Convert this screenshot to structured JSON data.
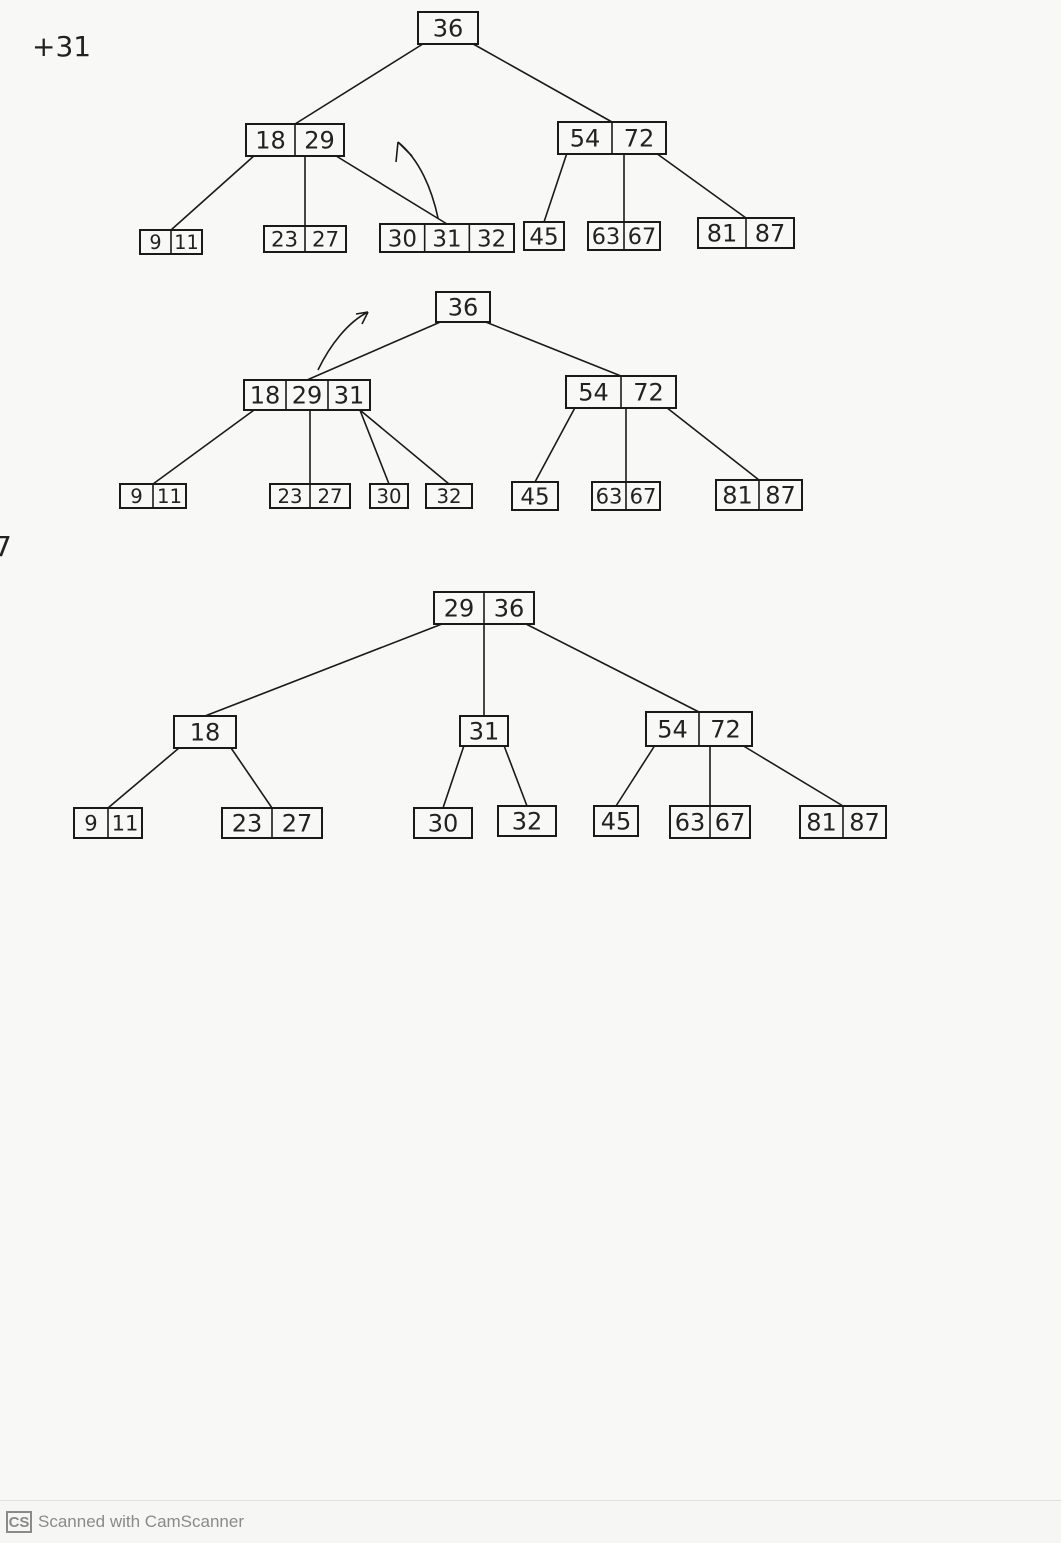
{
  "note": "+31",
  "stray_mark": "7",
  "trees": [
    {
      "nodes": [
        {
          "id": "t1-root",
          "keys": [
            "36"
          ]
        },
        {
          "id": "t1-l",
          "keys": [
            "18",
            "29"
          ]
        },
        {
          "id": "t1-r",
          "keys": [
            "54",
            "72"
          ]
        },
        {
          "id": "t1-a",
          "keys": [
            "9",
            "11"
          ]
        },
        {
          "id": "t1-b",
          "keys": [
            "23",
            "27"
          ]
        },
        {
          "id": "t1-c",
          "keys": [
            "30",
            "31",
            "32"
          ]
        },
        {
          "id": "t1-d",
          "keys": [
            "45"
          ]
        },
        {
          "id": "t1-e",
          "keys": [
            "63",
            "67"
          ]
        },
        {
          "id": "t1-f",
          "keys": [
            "81",
            "87"
          ]
        }
      ],
      "edges": [
        [
          "t1-root",
          "t1-l"
        ],
        [
          "t1-root",
          "t1-r"
        ],
        [
          "t1-l",
          "t1-a"
        ],
        [
          "t1-l",
          "t1-b"
        ],
        [
          "t1-l",
          "t1-c"
        ],
        [
          "t1-r",
          "t1-d"
        ],
        [
          "t1-r",
          "t1-e"
        ],
        [
          "t1-r",
          "t1-f"
        ]
      ]
    },
    {
      "nodes": [
        {
          "id": "t2-root",
          "keys": [
            "36"
          ]
        },
        {
          "id": "t2-l",
          "keys": [
            "18",
            "29",
            "31"
          ]
        },
        {
          "id": "t2-r",
          "keys": [
            "54",
            "72"
          ]
        },
        {
          "id": "t2-a",
          "keys": [
            "9",
            "11"
          ]
        },
        {
          "id": "t2-b",
          "keys": [
            "23",
            "27"
          ]
        },
        {
          "id": "t2-c",
          "keys": [
            "30"
          ]
        },
        {
          "id": "t2-d",
          "keys": [
            "32"
          ]
        },
        {
          "id": "t2-e",
          "keys": [
            "45"
          ]
        },
        {
          "id": "t2-f",
          "keys": [
            "63",
            "67"
          ]
        },
        {
          "id": "t2-g",
          "keys": [
            "81",
            "87"
          ]
        }
      ],
      "edges": [
        [
          "t2-root",
          "t2-l"
        ],
        [
          "t2-root",
          "t2-r"
        ],
        [
          "t2-l",
          "t2-a"
        ],
        [
          "t2-l",
          "t2-b"
        ],
        [
          "t2-l",
          "t2-c"
        ],
        [
          "t2-l",
          "t2-d"
        ],
        [
          "t2-r",
          "t2-e"
        ],
        [
          "t2-r",
          "t2-f"
        ],
        [
          "t2-r",
          "t2-g"
        ]
      ]
    },
    {
      "nodes": [
        {
          "id": "t3-root",
          "keys": [
            "29",
            "36"
          ]
        },
        {
          "id": "t3-l",
          "keys": [
            "18"
          ]
        },
        {
          "id": "t3-m",
          "keys": [
            "31"
          ]
        },
        {
          "id": "t3-r",
          "keys": [
            "54",
            "72"
          ]
        },
        {
          "id": "t3-a",
          "keys": [
            "9",
            "11"
          ]
        },
        {
          "id": "t3-b",
          "keys": [
            "23",
            "27"
          ]
        },
        {
          "id": "t3-c",
          "keys": [
            "30"
          ]
        },
        {
          "id": "t3-d",
          "keys": [
            "32"
          ]
        },
        {
          "id": "t3-e",
          "keys": [
            "45"
          ]
        },
        {
          "id": "t3-f",
          "keys": [
            "63",
            "67"
          ]
        },
        {
          "id": "t3-g",
          "keys": [
            "81",
            "87"
          ]
        }
      ],
      "edges": [
        [
          "t3-root",
          "t3-l"
        ],
        [
          "t3-root",
          "t3-m"
        ],
        [
          "t3-root",
          "t3-r"
        ],
        [
          "t3-l",
          "t3-a"
        ],
        [
          "t3-l",
          "t3-b"
        ],
        [
          "t3-m",
          "t3-c"
        ],
        [
          "t3-m",
          "t3-d"
        ],
        [
          "t3-r",
          "t3-e"
        ],
        [
          "t3-r",
          "t3-f"
        ],
        [
          "t3-r",
          "t3-g"
        ]
      ]
    }
  ],
  "footer": {
    "logo": "CS",
    "text": "Scanned with CamScanner"
  }
}
